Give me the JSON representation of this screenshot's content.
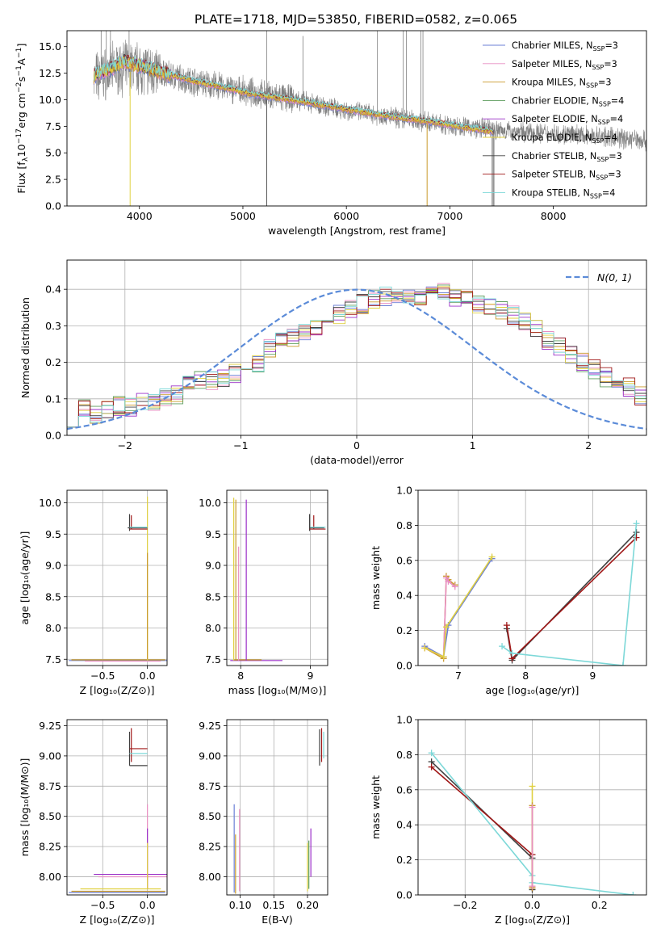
{
  "figure": {
    "title": "PLATE=1718, MJD=53850, FIBERID=0582, z=0.065"
  },
  "colors": {
    "observed": "#808080",
    "model": [
      "#6b7fd6",
      "#e88ec2",
      "#c99a2b",
      "#5f9e5f",
      "#9b30c8",
      "#e0d040",
      "#404040",
      "#a01818",
      "#7dd8d8"
    ],
    "gaussian": "#5b8bd8"
  },
  "chart_data": [
    {
      "id": "spectrum",
      "type": "line",
      "xlabel": "wavelength [Angstrom, rest frame]",
      "ylabel_parts": [
        "Flux [f",
        "λ",
        "10",
        "−17",
        " erg cm",
        "−2",
        " s",
        "−1",
        " A",
        "−1",
        "]"
      ],
      "xlim": [
        3300,
        8900
      ],
      "ylim": [
        0,
        16.5
      ],
      "xticks": [
        4000,
        5000,
        6000,
        7000,
        8000
      ],
      "yticks": [
        0.0,
        2.5,
        5.0,
        7.5,
        10.0,
        12.5,
        15.0
      ],
      "grid": false,
      "legend_position": "top-right",
      "series": [
        {
          "name": "Chabrier MILES, N",
          "sub": "SSP",
          "suffix": "=3"
        },
        {
          "name": "Salpeter MILES, N",
          "sub": "SSP",
          "suffix": "=3"
        },
        {
          "name": "Kroupa MILES, N",
          "sub": "SSP",
          "suffix": "=3"
        },
        {
          "name": "Chabrier ELODIE, N",
          "sub": "SSP",
          "suffix": "=4"
        },
        {
          "name": "Salpeter ELODIE, N",
          "sub": "SSP",
          "suffix": "=4"
        },
        {
          "name": "Kroupa ELODIE, N",
          "sub": "SSP",
          "suffix": "=4"
        },
        {
          "name": "Chabrier STELIB, N",
          "sub": "SSP",
          "suffix": "=3"
        },
        {
          "name": "Salpeter STELIB, N",
          "sub": "SSP",
          "suffix": "=3"
        },
        {
          "name": "Kroupa STELIB, N",
          "sub": "SSP",
          "suffix": "=4"
        }
      ],
      "model_continuum": {
        "x": [
          3560,
          3700,
          3850,
          4000,
          4200,
          4500,
          4800,
          5100,
          5400,
          5700,
          6000,
          6300,
          6600,
          6900,
          7200,
          7420
        ],
        "y": [
          12.2,
          12.8,
          13.6,
          13.2,
          12.6,
          11.8,
          11.2,
          10.5,
          10.1,
          9.6,
          9.1,
          8.6,
          8.2,
          7.8,
          7.3,
          7.0
        ]
      },
      "observed_range": [
        3560,
        8900
      ],
      "observed_trend": {
        "x": [
          3560,
          3800,
          4000,
          4500,
          5000,
          5500,
          6000,
          6500,
          7000,
          7500,
          8000,
          8500,
          8900
        ],
        "y": [
          12.0,
          13.0,
          13.0,
          11.8,
          10.8,
          10.0,
          9.0,
          8.3,
          7.6,
          7.1,
          6.8,
          6.5,
          6.2
        ]
      },
      "spikes": [
        {
          "x": 3630,
          "y": 16.5
        },
        {
          "x": 3680,
          "y": 16.5
        },
        {
          "x": 3720,
          "y": 16.5
        },
        {
          "x": 3900,
          "y": 16.5
        },
        {
          "x": 5230,
          "y": 16.5
        },
        {
          "x": 5580,
          "y": 16.0
        },
        {
          "x": 6300,
          "y": 16.5
        },
        {
          "x": 6550,
          "y": 16.5
        },
        {
          "x": 6580,
          "y": 16.5
        },
        {
          "x": 6720,
          "y": 16.5
        },
        {
          "x": 6740,
          "y": 16.5
        }
      ],
      "dips": [
        {
          "x": 3910,
          "y": 0
        },
        {
          "x": 5230,
          "y": 0
        },
        {
          "x": 6780,
          "y": 0
        },
        {
          "x": 7410,
          "y": 0
        },
        {
          "x": 7425,
          "y": 0
        }
      ]
    },
    {
      "id": "residuals",
      "type": "step",
      "xlabel": "(data-model)/error",
      "ylabel": "Normed distribution",
      "xlim": [
        -2.5,
        2.5
      ],
      "ylim": [
        0,
        0.48
      ],
      "xticks": [
        -2,
        -1,
        0,
        1,
        2
      ],
      "yticks": [
        0.0,
        0.1,
        0.2,
        0.3,
        0.4
      ],
      "grid": true,
      "legend_position": "top-right",
      "gaussian_label": "N(0, 1)",
      "bin_width": 0.1,
      "bin_start": -2.5,
      "histogram_center": [
        0.05,
        0.07,
        0.06,
        0.07,
        0.08,
        0.08,
        0.09,
        0.09,
        0.1,
        0.11,
        0.14,
        0.15,
        0.15,
        0.16,
        0.17,
        0.18,
        0.2,
        0.24,
        0.26,
        0.27,
        0.28,
        0.3,
        0.31,
        0.33,
        0.35,
        0.36,
        0.37,
        0.38,
        0.39,
        0.38,
        0.37,
        0.38,
        0.39,
        0.38,
        0.37,
        0.36,
        0.35,
        0.34,
        0.33,
        0.31,
        0.29,
        0.26,
        0.24,
        0.22,
        0.2,
        0.18,
        0.16,
        0.14,
        0.13,
        0.11,
        0.1,
        0.09,
        0.08,
        0.08,
        0.07,
        0.07,
        0.06,
        0.06,
        0.05,
        0.05
      ]
    },
    {
      "id": "age-vs-z",
      "type": "scatter",
      "xlabel": "Z [log₁₀(Z/Z⊙)]",
      "ylabel": "age  [log₁₀(age/yr)]",
      "xlim": [
        -0.9,
        0.22
      ],
      "ylim": [
        7.4,
        10.2
      ],
      "xticks": [
        -0.5,
        0.0
      ],
      "yticks": [
        7.5,
        8.0,
        8.5,
        9.0,
        9.5,
        10.0
      ],
      "grid": true,
      "segments": [
        {
          "x": [
            -0.88,
            0.22
          ],
          "y": [
            7.48,
            7.48
          ],
          "c": 0
        },
        {
          "x": [
            -0.85,
            0.2
          ],
          "y": [
            7.49,
            7.49
          ],
          "c": 2
        },
        {
          "x": [
            -0.7,
            0.15
          ],
          "y": [
            7.47,
            7.47
          ],
          "c": 1
        },
        {
          "x": [
            0.0,
            0.0
          ],
          "y": [
            7.48,
            10.1
          ],
          "c": 5
        },
        {
          "x": [
            0.0,
            0.0
          ],
          "y": [
            7.5,
            9.2
          ],
          "c": 2
        },
        {
          "x": [
            -0.2,
            -0.2
          ],
          "y": [
            9.55,
            9.82
          ],
          "c": 6
        },
        {
          "x": [
            -0.18,
            -0.18
          ],
          "y": [
            9.58,
            9.8
          ],
          "c": 7
        },
        {
          "x": [
            -0.2,
            0.0
          ],
          "y": [
            9.58,
            9.58
          ],
          "c": 7
        },
        {
          "x": [
            -0.22,
            0.0
          ],
          "y": [
            9.6,
            9.6
          ],
          "c": 6
        },
        {
          "x": [
            -0.2,
            0.0
          ],
          "y": [
            9.61,
            9.61
          ],
          "c": 8
        }
      ]
    },
    {
      "id": "age-vs-mass",
      "type": "scatter",
      "xlabel": "mass [log₁₀(M/M⊙)]",
      "ylabel": "",
      "xlim": [
        7.8,
        9.25
      ],
      "ylim": [
        7.4,
        10.2
      ],
      "xticks": [
        8,
        9
      ],
      "yticks": [
        7.5,
        8.0,
        8.5,
        9.0,
        9.5,
        10.0
      ],
      "grid": true,
      "segments": [
        {
          "x": [
            7.85,
            8.6
          ],
          "y": [
            7.48,
            7.48
          ],
          "c": 4
        },
        {
          "x": [
            7.9,
            8.3
          ],
          "y": [
            7.49,
            7.49
          ],
          "c": 2
        },
        {
          "x": [
            7.9,
            7.9
          ],
          "y": [
            7.48,
            10.08
          ],
          "c": 5
        },
        {
          "x": [
            7.93,
            7.93
          ],
          "y": [
            7.48,
            10.05
          ],
          "c": 2
        },
        {
          "x": [
            8.08,
            8.08
          ],
          "y": [
            7.48,
            10.05
          ],
          "c": 4
        },
        {
          "x": [
            7.97,
            7.97
          ],
          "y": [
            7.48,
            9.3
          ],
          "c": 1
        },
        {
          "x": [
            8.99,
            8.99
          ],
          "y": [
            9.55,
            9.82
          ],
          "c": 6
        },
        {
          "x": [
            9.05,
            9.05
          ],
          "y": [
            9.58,
            9.8
          ],
          "c": 7
        },
        {
          "x": [
            8.99,
            9.22
          ],
          "y": [
            9.58,
            9.58
          ],
          "c": 7
        },
        {
          "x": [
            8.99,
            9.2
          ],
          "y": [
            9.6,
            9.6
          ],
          "c": 6
        },
        {
          "x": [
            9.0,
            9.22
          ],
          "y": [
            9.61,
            9.61
          ],
          "c": 8
        }
      ]
    },
    {
      "id": "weight-vs-age",
      "type": "line",
      "xlabel": "age  [log₁₀(age/yr)]",
      "ylabel": "mass weight",
      "xlim": [
        6.4,
        9.8
      ],
      "ylim": [
        0.0,
        1.0
      ],
      "xticks": [
        7,
        8,
        9
      ],
      "yticks": [
        0.0,
        0.2,
        0.4,
        0.6,
        0.8,
        1.0
      ],
      "grid": true,
      "series": [
        {
          "c": 0,
          "x": [
            6.5,
            6.78,
            6.85,
            7.5
          ],
          "y": [
            0.11,
            0.05,
            0.23,
            0.61
          ]
        },
        {
          "c": 2,
          "x": [
            6.5,
            6.78,
            6.82,
            6.85,
            6.95
          ],
          "y": [
            0.1,
            0.04,
            0.51,
            0.49,
            0.46
          ]
        },
        {
          "c": 1,
          "x": [
            6.5,
            6.78,
            6.82,
            6.85,
            6.95
          ],
          "y": [
            0.1,
            0.05,
            0.5,
            0.48,
            0.45
          ]
        },
        {
          "c": 5,
          "x": [
            6.5,
            6.78,
            6.82,
            7.5
          ],
          "y": [
            0.1,
            0.05,
            0.22,
            0.62
          ]
        },
        {
          "c": 6,
          "x": [
            7.72,
            7.8,
            9.65
          ],
          "y": [
            0.21,
            0.03,
            0.76
          ]
        },
        {
          "c": 7,
          "x": [
            7.72,
            7.8,
            9.65
          ],
          "y": [
            0.23,
            0.04,
            0.73
          ]
        },
        {
          "c": 8,
          "x": [
            7.65,
            7.8,
            9.45,
            9.65
          ],
          "y": [
            0.11,
            0.07,
            0.0,
            0.81
          ]
        }
      ]
    },
    {
      "id": "mass-vs-z",
      "type": "scatter",
      "xlabel": "Z [log₁₀(Z/Z⊙)]",
      "ylabel": "mass [log₁₀(M/M⊙)]",
      "xlim": [
        -0.9,
        0.22
      ],
      "ylim": [
        7.85,
        9.3
      ],
      "xticks": [
        -0.5,
        0.0
      ],
      "yticks": [
        8.0,
        8.25,
        8.5,
        8.75,
        9.0,
        9.25
      ],
      "grid": true,
      "segments": [
        {
          "x": [
            -0.88,
            0.2
          ],
          "y": [
            7.87,
            7.87
          ],
          "c": 0
        },
        {
          "x": [
            -0.85,
            0.2
          ],
          "y": [
            7.88,
            7.88
          ],
          "c": 2
        },
        {
          "x": [
            -0.75,
            0.15
          ],
          "y": [
            7.9,
            7.9
          ],
          "c": 5
        },
        {
          "x": [
            -0.6,
            0.22
          ],
          "y": [
            8.02,
            8.02
          ],
          "c": 4
        },
        {
          "x": [
            -0.55,
            0.22
          ],
          "y": [
            8.0,
            8.0
          ],
          "c": 1
        },
        {
          "x": [
            0.0,
            0.0
          ],
          "y": [
            7.9,
            8.6
          ],
          "c": 1
        },
        {
          "x": [
            0.0,
            0.0
          ],
          "y": [
            7.9,
            8.4
          ],
          "c": 4
        },
        {
          "x": [
            0.0,
            0.0
          ],
          "y": [
            7.9,
            8.28
          ],
          "c": 5
        },
        {
          "x": [
            -0.2,
            -0.2
          ],
          "y": [
            8.92,
            9.2
          ],
          "c": 6
        },
        {
          "x": [
            -0.18,
            -0.18
          ],
          "y": [
            8.95,
            9.23
          ],
          "c": 7
        },
        {
          "x": [
            -0.2,
            0.0
          ],
          "y": [
            8.92,
            8.92
          ],
          "c": 6
        },
        {
          "x": [
            -0.2,
            0.0
          ],
          "y": [
            9.06,
            9.06
          ],
          "c": 7
        },
        {
          "x": [
            -0.2,
            0.0
          ],
          "y": [
            9.02,
            9.02
          ],
          "c": 8
        }
      ]
    },
    {
      "id": "mass-vs-ebv",
      "type": "scatter",
      "xlabel": "E(B-V)",
      "ylabel": "",
      "xlim": [
        0.08,
        0.23
      ],
      "ylim": [
        7.85,
        9.3
      ],
      "xticks": [
        0.1,
        0.15,
        0.2
      ],
      "yticks": [
        8.0,
        8.25,
        8.5,
        8.75,
        9.0,
        9.25
      ],
      "grid": true,
      "segments": [
        {
          "x": [
            0.091,
            0.091
          ],
          "y": [
            7.87,
            8.6
          ],
          "c": 0
        },
        {
          "x": [
            0.093,
            0.093
          ],
          "y": [
            7.86,
            8.35
          ],
          "c": 2
        },
        {
          "x": [
            0.099,
            0.099
          ],
          "y": [
            7.88,
            8.56
          ],
          "c": 1
        },
        {
          "x": [
            0.2,
            0.2
          ],
          "y": [
            7.88,
            8.28
          ],
          "c": 5
        },
        {
          "x": [
            0.202,
            0.202
          ],
          "y": [
            7.9,
            8.3
          ],
          "c": 3
        },
        {
          "x": [
            0.205,
            0.205
          ],
          "y": [
            8.0,
            8.4
          ],
          "c": 4
        },
        {
          "x": [
            0.218,
            0.218
          ],
          "y": [
            8.92,
            9.22
          ],
          "c": 6
        },
        {
          "x": [
            0.221,
            0.221
          ],
          "y": [
            8.95,
            9.23
          ],
          "c": 7
        },
        {
          "x": [
            0.224,
            0.224
          ],
          "y": [
            8.98,
            9.2
          ],
          "c": 8
        }
      ]
    },
    {
      "id": "weight-vs-z",
      "type": "line",
      "xlabel": "Z [log₁₀(Z/Z⊙)]",
      "ylabel": "mass weight",
      "xlim": [
        -0.34,
        0.34
      ],
      "ylim": [
        0.0,
        1.0
      ],
      "xticks": [
        -0.2,
        0.0,
        0.2
      ],
      "yticks": [
        0.0,
        0.2,
        0.4,
        0.6,
        0.8,
        1.0
      ],
      "grid": true,
      "series": [
        {
          "c": 6,
          "x": [
            -0.3,
            0.0,
            0.0
          ],
          "y": [
            0.76,
            0.21,
            0.03
          ]
        },
        {
          "c": 7,
          "x": [
            -0.3,
            0.0,
            0.0
          ],
          "y": [
            0.73,
            0.23,
            0.04
          ]
        },
        {
          "c": 8,
          "x": [
            -0.3,
            0.0,
            0.0,
            0.3
          ],
          "y": [
            0.81,
            0.11,
            0.07,
            0.0
          ]
        },
        {
          "c": 5,
          "x": [
            0.0,
            0.0
          ],
          "y": [
            0.05,
            0.62
          ]
        },
        {
          "c": 2,
          "x": [
            0.0,
            0.0
          ],
          "y": [
            0.04,
            0.51
          ]
        },
        {
          "c": 1,
          "x": [
            0.0,
            0.0
          ],
          "y": [
            0.05,
            0.5
          ]
        }
      ]
    }
  ]
}
